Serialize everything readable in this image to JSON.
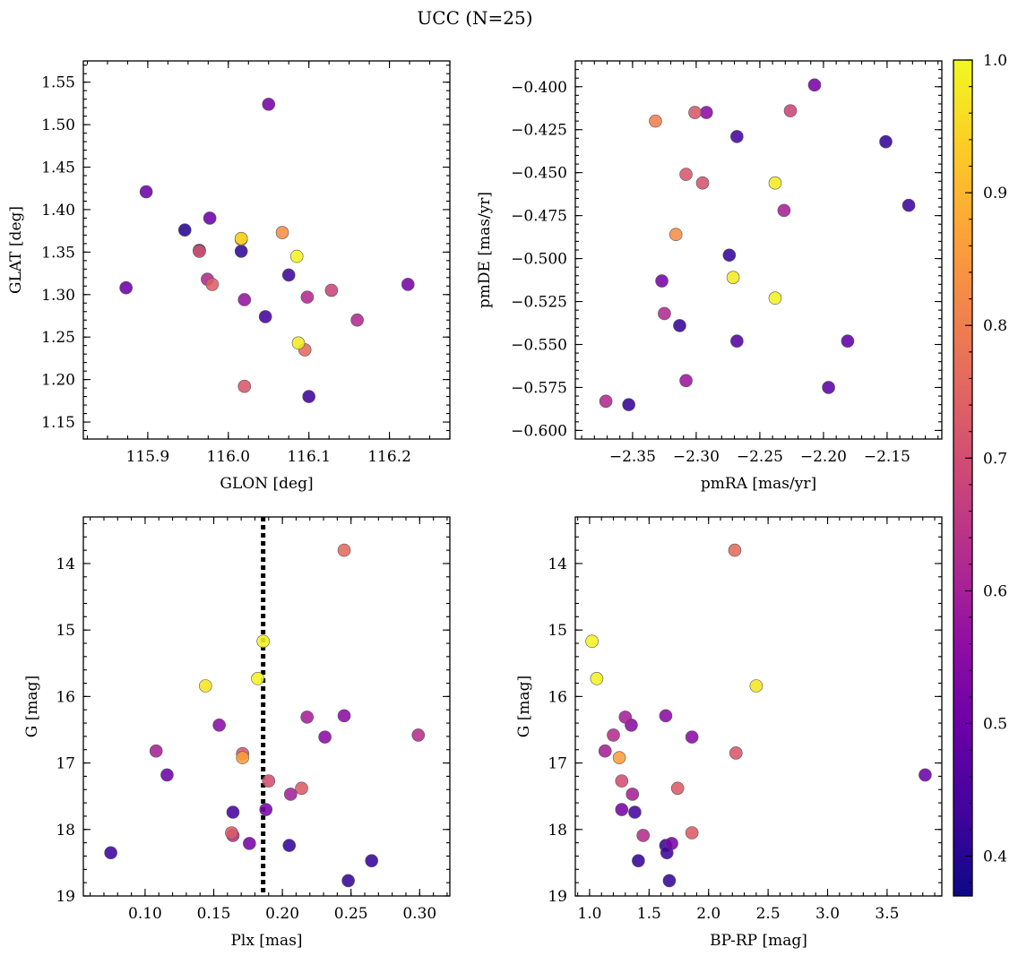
{
  "title": "UCC (N=25)",
  "colorbar": {
    "cmap": "plasma",
    "range": [
      0.37,
      1.0
    ],
    "ticks": [
      0.4,
      0.5,
      0.6,
      0.7,
      0.8,
      0.9,
      1.0
    ],
    "tick_labels": [
      "0.4",
      "0.5",
      "0.6",
      "0.7",
      "0.8",
      "0.9",
      "1.0"
    ]
  },
  "chart_data": [
    {
      "type": "scatter",
      "xlabel": "GLON [deg]",
      "ylabel": "GLAT [deg]",
      "xlim": [
        115.82,
        116.275
      ],
      "ylim": [
        1.13,
        1.575
      ],
      "xticks": [
        115.9,
        116.0,
        116.1,
        116.2
      ],
      "xtick_labels": [
        "115.9",
        "116.0",
        "116.1",
        "116.2"
      ],
      "yticks": [
        1.15,
        1.2,
        1.25,
        1.3,
        1.35,
        1.4,
        1.45,
        1.5,
        1.55
      ],
      "ytick_labels": [
        "1.15",
        "1.20",
        "1.25",
        "1.30",
        "1.35",
        "1.40",
        "1.45",
        "1.50",
        "1.55"
      ],
      "yinverted": false,
      "points": [
        {
          "x": 116.05,
          "y": 1.524,
          "c": 0.52
        },
        {
          "x": 115.898,
          "y": 1.421,
          "c": 0.5
        },
        {
          "x": 115.946,
          "y": 1.376,
          "c": 0.4
        },
        {
          "x": 115.977,
          "y": 1.39,
          "c": 0.5
        },
        {
          "x": 115.964,
          "y": 1.352,
          "c": 0.4
        },
        {
          "x": 115.964,
          "y": 1.351,
          "c": 0.72
        },
        {
          "x": 116.016,
          "y": 1.366,
          "c": 0.95
        },
        {
          "x": 116.016,
          "y": 1.365,
          "c": 0.84
        },
        {
          "x": 116.016,
          "y": 1.351,
          "c": 0.42
        },
        {
          "x": 116.067,
          "y": 1.373,
          "c": 0.83
        },
        {
          "x": 116.085,
          "y": 1.345,
          "c": 0.99
        },
        {
          "x": 115.873,
          "y": 1.308,
          "c": 0.5
        },
        {
          "x": 115.974,
          "y": 1.318,
          "c": 0.62
        },
        {
          "x": 115.98,
          "y": 1.312,
          "c": 0.74
        },
        {
          "x": 116.02,
          "y": 1.294,
          "c": 0.57
        },
        {
          "x": 116.075,
          "y": 1.323,
          "c": 0.43
        },
        {
          "x": 116.098,
          "y": 1.297,
          "c": 0.62
        },
        {
          "x": 116.128,
          "y": 1.305,
          "c": 0.68
        },
        {
          "x": 116.223,
          "y": 1.312,
          "c": 0.52
        },
        {
          "x": 116.046,
          "y": 1.274,
          "c": 0.44
        },
        {
          "x": 116.16,
          "y": 1.27,
          "c": 0.62
        },
        {
          "x": 116.087,
          "y": 1.243,
          "c": 0.98
        },
        {
          "x": 116.095,
          "y": 1.235,
          "c": 0.76
        },
        {
          "x": 116.02,
          "y": 1.192,
          "c": 0.72
        },
        {
          "x": 116.1,
          "y": 1.18,
          "c": 0.43
        }
      ]
    },
    {
      "type": "scatter",
      "xlabel": "pmRA [mas/yr]",
      "ylabel": "pmDE [mas/yr]",
      "xlim": [
        -2.395,
        -2.107
      ],
      "ylim": [
        -0.605,
        -0.385
      ],
      "xticks": [
        -2.35,
        -2.3,
        -2.25,
        -2.2,
        -2.15
      ],
      "xtick_labels": [
        "−2.35",
        "−2.30",
        "−2.25",
        "−2.20",
        "−2.15"
      ],
      "yticks": [
        -0.6,
        -0.575,
        -0.55,
        -0.525,
        -0.5,
        -0.475,
        -0.45,
        -0.425,
        -0.4
      ],
      "ytick_labels": [
        "−0.600",
        "−0.575",
        "−0.550",
        "−0.525",
        "−0.500",
        "−0.475",
        "−0.450",
        "−0.425",
        "−0.400"
      ],
      "yinverted": false,
      "points": [
        {
          "x": -2.207,
          "y": -0.399,
          "c": 0.52
        },
        {
          "x": -2.332,
          "y": -0.42,
          "c": 0.8
        },
        {
          "x": -2.301,
          "y": -0.415,
          "c": 0.72
        },
        {
          "x": -2.292,
          "y": -0.415,
          "c": 0.55
        },
        {
          "x": -2.226,
          "y": -0.414,
          "c": 0.68
        },
        {
          "x": -2.268,
          "y": -0.429,
          "c": 0.44
        },
        {
          "x": -2.151,
          "y": -0.432,
          "c": 0.42
        },
        {
          "x": -2.308,
          "y": -0.451,
          "c": 0.72
        },
        {
          "x": -2.295,
          "y": -0.456,
          "c": 0.71
        },
        {
          "x": -2.238,
          "y": -0.456,
          "c": 0.98
        },
        {
          "x": -2.133,
          "y": -0.469,
          "c": 0.43
        },
        {
          "x": -2.231,
          "y": -0.472,
          "c": 0.6
        },
        {
          "x": -2.316,
          "y": -0.486,
          "c": 0.83
        },
        {
          "x": -2.274,
          "y": -0.498,
          "c": 0.42
        },
        {
          "x": -2.271,
          "y": -0.511,
          "c": 0.98
        },
        {
          "x": -2.327,
          "y": -0.513,
          "c": 0.52
        },
        {
          "x": -2.238,
          "y": -0.523,
          "c": 0.99
        },
        {
          "x": -2.325,
          "y": -0.532,
          "c": 0.62
        },
        {
          "x": -2.313,
          "y": -0.539,
          "c": 0.42
        },
        {
          "x": -2.268,
          "y": -0.548,
          "c": 0.46
        },
        {
          "x": -2.181,
          "y": -0.548,
          "c": 0.48
        },
        {
          "x": -2.308,
          "y": -0.571,
          "c": 0.58
        },
        {
          "x": -2.196,
          "y": -0.575,
          "c": 0.48
        },
        {
          "x": -2.371,
          "y": -0.583,
          "c": 0.62
        },
        {
          "x": -2.353,
          "y": -0.585,
          "c": 0.42
        }
      ]
    },
    {
      "type": "scatter",
      "xlabel": "Plx [mas]",
      "ylabel": "G [mag]",
      "xlim": [
        0.055,
        0.322
      ],
      "ylim": [
        13.3,
        19.0
      ],
      "xticks": [
        0.1,
        0.15,
        0.2,
        0.25,
        0.3
      ],
      "xtick_labels": [
        "0.10",
        "0.15",
        "0.20",
        "0.25",
        "0.30"
      ],
      "yticks": [
        14,
        15,
        16,
        17,
        18,
        19
      ],
      "ytick_labels": [
        "14",
        "15",
        "16",
        "17",
        "18",
        "19"
      ],
      "yinverted": true,
      "vline": {
        "x": 0.186,
        "style": "dotted"
      },
      "points": [
        {
          "x": 0.245,
          "y": 13.8,
          "c": 0.76
        },
        {
          "x": 0.186,
          "y": 15.17,
          "c": 0.99
        },
        {
          "x": 0.182,
          "y": 15.73,
          "c": 0.99
        },
        {
          "x": 0.144,
          "y": 15.84,
          "c": 0.97
        },
        {
          "x": 0.245,
          "y": 16.29,
          "c": 0.55
        },
        {
          "x": 0.218,
          "y": 16.31,
          "c": 0.6
        },
        {
          "x": 0.154,
          "y": 16.43,
          "c": 0.55
        },
        {
          "x": 0.299,
          "y": 16.58,
          "c": 0.63
        },
        {
          "x": 0.231,
          "y": 16.61,
          "c": 0.55
        },
        {
          "x": 0.108,
          "y": 16.82,
          "c": 0.6
        },
        {
          "x": 0.171,
          "y": 16.86,
          "c": 0.72
        },
        {
          "x": 0.171,
          "y": 16.92,
          "c": 0.86
        },
        {
          "x": 0.116,
          "y": 17.18,
          "c": 0.5
        },
        {
          "x": 0.19,
          "y": 17.27,
          "c": 0.7
        },
        {
          "x": 0.214,
          "y": 17.38,
          "c": 0.73
        },
        {
          "x": 0.206,
          "y": 17.47,
          "c": 0.6
        },
        {
          "x": 0.188,
          "y": 17.7,
          "c": 0.52
        },
        {
          "x": 0.164,
          "y": 17.74,
          "c": 0.44
        },
        {
          "x": 0.163,
          "y": 18.05,
          "c": 0.73
        },
        {
          "x": 0.164,
          "y": 18.09,
          "c": 0.63
        },
        {
          "x": 0.176,
          "y": 18.21,
          "c": 0.52
        },
        {
          "x": 0.205,
          "y": 18.24,
          "c": 0.42
        },
        {
          "x": 0.075,
          "y": 18.35,
          "c": 0.43
        },
        {
          "x": 0.265,
          "y": 18.47,
          "c": 0.42
        },
        {
          "x": 0.248,
          "y": 18.77,
          "c": 0.42
        }
      ]
    },
    {
      "type": "scatter",
      "xlabel": "BP-RP [mag]",
      "ylabel": "G [mag]",
      "xlim": [
        0.88,
        3.96
      ],
      "ylim": [
        13.3,
        19.0
      ],
      "xticks": [
        1.0,
        1.5,
        2.0,
        2.5,
        3.0,
        3.5
      ],
      "xtick_labels": [
        "1.0",
        "1.5",
        "2.0",
        "2.5",
        "3.0",
        "3.5"
      ],
      "yticks": [
        14,
        15,
        16,
        17,
        18,
        19
      ],
      "ytick_labels": [
        "14",
        "15",
        "16",
        "17",
        "18",
        "19"
      ],
      "yinverted": true,
      "points": [
        {
          "x": 2.22,
          "y": 13.8,
          "c": 0.76
        },
        {
          "x": 1.02,
          "y": 15.17,
          "c": 0.99
        },
        {
          "x": 1.06,
          "y": 15.73,
          "c": 0.99
        },
        {
          "x": 2.4,
          "y": 15.84,
          "c": 0.97
        },
        {
          "x": 1.64,
          "y": 16.29,
          "c": 0.55
        },
        {
          "x": 1.3,
          "y": 16.31,
          "c": 0.6
        },
        {
          "x": 1.35,
          "y": 16.43,
          "c": 0.55
        },
        {
          "x": 1.2,
          "y": 16.58,
          "c": 0.63
        },
        {
          "x": 1.86,
          "y": 16.61,
          "c": 0.55
        },
        {
          "x": 1.13,
          "y": 16.82,
          "c": 0.6
        },
        {
          "x": 2.23,
          "y": 16.85,
          "c": 0.72
        },
        {
          "x": 1.25,
          "y": 16.92,
          "c": 0.86
        },
        {
          "x": 3.82,
          "y": 17.18,
          "c": 0.5
        },
        {
          "x": 1.27,
          "y": 17.27,
          "c": 0.7
        },
        {
          "x": 1.74,
          "y": 17.38,
          "c": 0.73
        },
        {
          "x": 1.36,
          "y": 17.47,
          "c": 0.6
        },
        {
          "x": 1.27,
          "y": 17.7,
          "c": 0.52
        },
        {
          "x": 1.38,
          "y": 17.74,
          "c": 0.44
        },
        {
          "x": 1.86,
          "y": 18.05,
          "c": 0.73
        },
        {
          "x": 1.45,
          "y": 18.09,
          "c": 0.63
        },
        {
          "x": 1.69,
          "y": 18.21,
          "c": 0.52
        },
        {
          "x": 1.64,
          "y": 18.24,
          "c": 0.42
        },
        {
          "x": 1.65,
          "y": 18.35,
          "c": 0.43
        },
        {
          "x": 1.41,
          "y": 18.47,
          "c": 0.42
        },
        {
          "x": 1.67,
          "y": 18.77,
          "c": 0.42
        }
      ]
    }
  ]
}
